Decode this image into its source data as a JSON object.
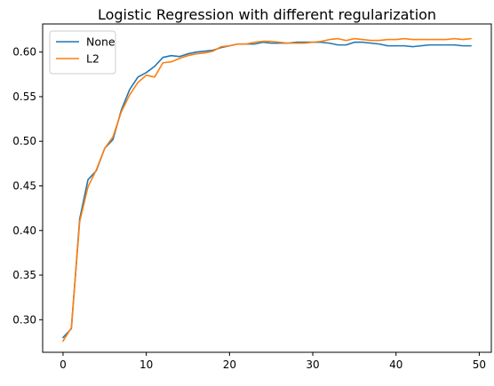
{
  "chart_data": {
    "type": "line",
    "title": "Logistic Regression with different regularization",
    "xlabel": "",
    "ylabel": "",
    "xlim": [
      -2.45,
      51.45
    ],
    "ylim": [
      0.2635,
      0.6315
    ],
    "xticks": [
      0,
      10,
      20,
      30,
      40,
      50
    ],
    "yticks": [
      0.3,
      0.35,
      0.4,
      0.45,
      0.5,
      0.55,
      0.6
    ],
    "ytick_labels": [
      "0.30",
      "0.35",
      "0.40",
      "0.45",
      "0.50",
      "0.55",
      "0.60"
    ],
    "grid": false,
    "legend": {
      "placement": "top-left"
    },
    "x": [
      0,
      1,
      2,
      3,
      4,
      5,
      6,
      7,
      8,
      9,
      10,
      11,
      12,
      13,
      14,
      15,
      16,
      17,
      18,
      19,
      20,
      21,
      22,
      23,
      24,
      25,
      26,
      27,
      28,
      29,
      30,
      31,
      32,
      33,
      34,
      35,
      36,
      37,
      38,
      39,
      40,
      41,
      42,
      43,
      44,
      45,
      46,
      47,
      48,
      49
    ],
    "series": [
      {
        "name": "None",
        "color": "#1f77b4",
        "values": [
          0.28,
          0.29,
          0.413,
          0.457,
          0.467,
          0.492,
          0.502,
          0.535,
          0.558,
          0.572,
          0.577,
          0.584,
          0.594,
          0.596,
          0.595,
          0.598,
          0.6,
          0.601,
          0.602,
          0.605,
          0.607,
          0.609,
          0.609,
          0.609,
          0.611,
          0.61,
          0.61,
          0.61,
          0.611,
          0.611,
          0.611,
          0.611,
          0.61,
          0.608,
          0.608,
          0.611,
          0.611,
          0.61,
          0.609,
          0.607,
          0.607,
          0.607,
          0.606,
          0.607,
          0.608,
          0.608,
          0.608,
          0.608,
          0.607,
          0.607
        ]
      },
      {
        "name": "L2",
        "color": "#ff7f0e",
        "values": [
          0.276,
          0.291,
          0.41,
          0.449,
          0.468,
          0.492,
          0.505,
          0.533,
          0.552,
          0.566,
          0.574,
          0.572,
          0.588,
          0.589,
          0.593,
          0.596,
          0.598,
          0.599,
          0.601,
          0.606,
          0.607,
          0.609,
          0.609,
          0.611,
          0.612,
          0.612,
          0.611,
          0.61,
          0.61,
          0.61,
          0.611,
          0.612,
          0.614,
          0.615,
          0.613,
          0.615,
          0.614,
          0.613,
          0.613,
          0.614,
          0.614,
          0.615,
          0.614,
          0.614,
          0.614,
          0.614,
          0.614,
          0.615,
          0.614,
          0.615
        ]
      }
    ]
  }
}
